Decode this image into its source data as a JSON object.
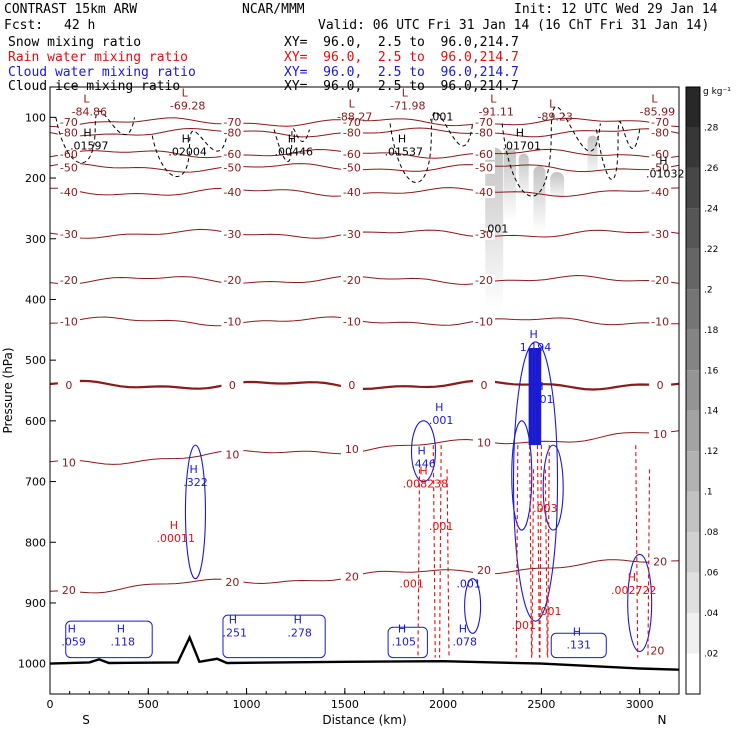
{
  "header": {
    "model": "CONTRAST 15km ARW",
    "org": "NCAR/MMM",
    "init": "Init: 12 UTC Wed 29 Jan 14",
    "fcst_label": "Fcst:",
    "fcst_value": "42 h",
    "valid": "Valid: 06 UTC Fri 31 Jan 14 (16 ChT Fri 31 Jan 14)"
  },
  "fields": [
    {
      "name": "Snow mixing ratio",
      "xy": "XY=  96.0,  2.5 to  96.0,214.7",
      "color": "#000000"
    },
    {
      "name": "Rain water mixing ratio",
      "xy": "XY=  96.0,  2.5 to  96.0,214.7",
      "color": "#e01010"
    },
    {
      "name": "Cloud water mixing ratio",
      "xy": "XY=  96.0,  2.5 to  96.0,214.7",
      "color": "#1a1ad0"
    },
    {
      "name": "Cloud ice mixing ratio",
      "xy": "XY=  96.0,  2.5 to  96.0,214.7",
      "color": "#000000"
    }
  ],
  "chart_data": {
    "type": "heatmap",
    "xlabel": "Distance (km)",
    "ylabel": "Pressure (hPa)",
    "xlim": [
      0,
      3200
    ],
    "ylim": [
      1050,
      50
    ],
    "x_ticks": [
      0,
      500,
      1000,
      1500,
      2000,
      2500,
      3000
    ],
    "y_ticks": [
      100,
      200,
      300,
      400,
      500,
      600,
      700,
      800,
      900,
      1000
    ],
    "end_labels": {
      "left": "S",
      "right": "N"
    },
    "colorbar": {
      "unit": "g kg⁻¹",
      "ticks": [
        ".02",
        ".04",
        ".06",
        ".08",
        ".1",
        ".12",
        ".14",
        ".16",
        ".18",
        ".2",
        ".22",
        ".24",
        ".26",
        ".28"
      ],
      "values": [
        0.02,
        0.04,
        0.06,
        0.08,
        0.1,
        0.12,
        0.14,
        0.16,
        0.18,
        0.2,
        0.22,
        0.24,
        0.26,
        0.28
      ]
    },
    "temperature_contours": [
      {
        "label": "-80",
        "p": 125
      },
      {
        "label": "-70",
        "p": 108
      },
      {
        "label": "-60",
        "p": 160
      },
      {
        "label": "-50",
        "p": 183
      },
      {
        "label": "-40",
        "p": 223
      },
      {
        "label": "-30",
        "p": 292
      },
      {
        "label": "-20",
        "p": 368
      },
      {
        "label": "-10",
        "p": 436
      },
      {
        "label": "0",
        "p": 541
      },
      {
        "label": "10",
        "p": 670
      },
      {
        "label": "20",
        "p": 880
      }
    ],
    "extrema_labels": [
      {
        "type": "L",
        "text": "-84.86",
        "x": 200,
        "p": 92,
        "color": "#8b1a1a"
      },
      {
        "type": "L",
        "text": "-69.28",
        "x": 700,
        "p": 82,
        "color": "#8b1a1a"
      },
      {
        "type": "L",
        "text": "-88.27",
        "x": 1550,
        "p": 100,
        "color": "#8b1a1a"
      },
      {
        "type": "L",
        "text": "-71.98",
        "x": 1820,
        "p": 82,
        "color": "#8b1a1a"
      },
      {
        "type": "L",
        "text": "-91.11",
        "x": 2270,
        "p": 92,
        "color": "#8b1a1a"
      },
      {
        "type": "L",
        "text": "-89.23",
        "x": 2570,
        "p": 100,
        "color": "#8b1a1a"
      },
      {
        "type": "L",
        "text": "-85.99",
        "x": 3090,
        "p": 92,
        "color": "#8b1a1a"
      },
      {
        "type": "H",
        "text": ".01597",
        "x": 200,
        "p": 148,
        "color": "#000000"
      },
      {
        "type": "H",
        "text": ".02004",
        "x": 700,
        "p": 158,
        "color": "#000000"
      },
      {
        "type": "H",
        "text": ".00446",
        "x": 1240,
        "p": 158,
        "color": "#000000"
      },
      {
        "type": "H",
        "text": ".01537",
        "x": 1800,
        "p": 158,
        "color": "#000000"
      },
      {
        "type": "H",
        "text": ".01701",
        "x": 2400,
        "p": 148,
        "color": "#000000"
      },
      {
        "type": "H",
        "text": ".01032",
        "x": 3130,
        "p": 194,
        "color": "#000000"
      },
      {
        "type": "",
        "text": ".001",
        "x": 1990,
        "p": 100,
        "color": "#000000"
      },
      {
        "type": "",
        "text": ".001",
        "x": 2270,
        "p": 285,
        "color": "#000000"
      },
      {
        "type": "H",
        "text": ".322",
        "x": 740,
        "p": 702,
        "color": "#1a1ad0"
      },
      {
        "type": "H",
        "text": ".446",
        "x": 1900,
        "p": 672,
        "color": "#1a1ad0"
      },
      {
        "type": "H",
        "text": ".001",
        "x": 1990,
        "p": 600,
        "color": "#1a1ad0"
      },
      {
        "type": "H",
        "text": "1.194",
        "x": 2470,
        "p": 480,
        "color": "#1a1ad0"
      },
      {
        "type": "H",
        "text": ".001",
        "x": 2500,
        "p": 566,
        "color": "#1a1ad0"
      },
      {
        "type": "",
        "text": ".001",
        "x": 2130,
        "p": 870,
        "color": "#1a1ad0"
      },
      {
        "type": "H",
        "text": ".059",
        "x": 120,
        "p": 965,
        "color": "#1a1ad0"
      },
      {
        "type": "H",
        "text": ".118",
        "x": 370,
        "p": 965,
        "color": "#1a1ad0"
      },
      {
        "type": "H",
        "text": ".251",
        "x": 940,
        "p": 950,
        "color": "#1a1ad0"
      },
      {
        "type": "H",
        "text": ".278",
        "x": 1270,
        "p": 950,
        "color": "#1a1ad0"
      },
      {
        "type": "H",
        "text": ".105",
        "x": 1800,
        "p": 965,
        "color": "#1a1ad0"
      },
      {
        "type": "H",
        "text": ".078",
        "x": 2110,
        "p": 965,
        "color": "#1a1ad0"
      },
      {
        "type": "H",
        "text": ".131",
        "x": 2690,
        "p": 970,
        "color": "#1a1ad0"
      },
      {
        "type": "H",
        "text": ".00011",
        "x": 640,
        "p": 795,
        "color": "#e01010"
      },
      {
        "type": "H",
        "text": ".008238",
        "x": 1910,
        "p": 705,
        "color": "#e01010"
      },
      {
        "type": "",
        "text": ".001",
        "x": 1840,
        "p": 870,
        "color": "#e01010"
      },
      {
        "type": "",
        "text": ".001",
        "x": 1990,
        "p": 775,
        "color": "#e01010"
      },
      {
        "type": "",
        "text": ".001",
        "x": 2410,
        "p": 938,
        "color": "#e01010"
      },
      {
        "type": "",
        "text": ".001",
        "x": 2540,
        "p": 915,
        "color": "#e01010"
      },
      {
        "type": "",
        "text": ".003",
        "x": 2520,
        "p": 745,
        "color": "#e01010"
      },
      {
        "type": "H",
        "text": ".002722",
        "x": 2970,
        "p": 880,
        "color": "#e01010"
      },
      {
        "type": "",
        "text": "20",
        "x": 3090,
        "p": 980,
        "color": "#8b1a1a"
      }
    ],
    "terrain_surface": [
      {
        "x": 0,
        "p": 1000
      },
      {
        "x": 200,
        "p": 998
      },
      {
        "x": 250,
        "p": 993
      },
      {
        "x": 300,
        "p": 999
      },
      {
        "x": 650,
        "p": 998
      },
      {
        "x": 710,
        "p": 957
      },
      {
        "x": 760,
        "p": 997
      },
      {
        "x": 850,
        "p": 992
      },
      {
        "x": 900,
        "p": 999
      },
      {
        "x": 1500,
        "p": 997
      },
      {
        "x": 2000,
        "p": 996
      },
      {
        "x": 2500,
        "p": 1000
      },
      {
        "x": 3000,
        "p": 1008
      },
      {
        "x": 3200,
        "p": 1010
      }
    ]
  }
}
